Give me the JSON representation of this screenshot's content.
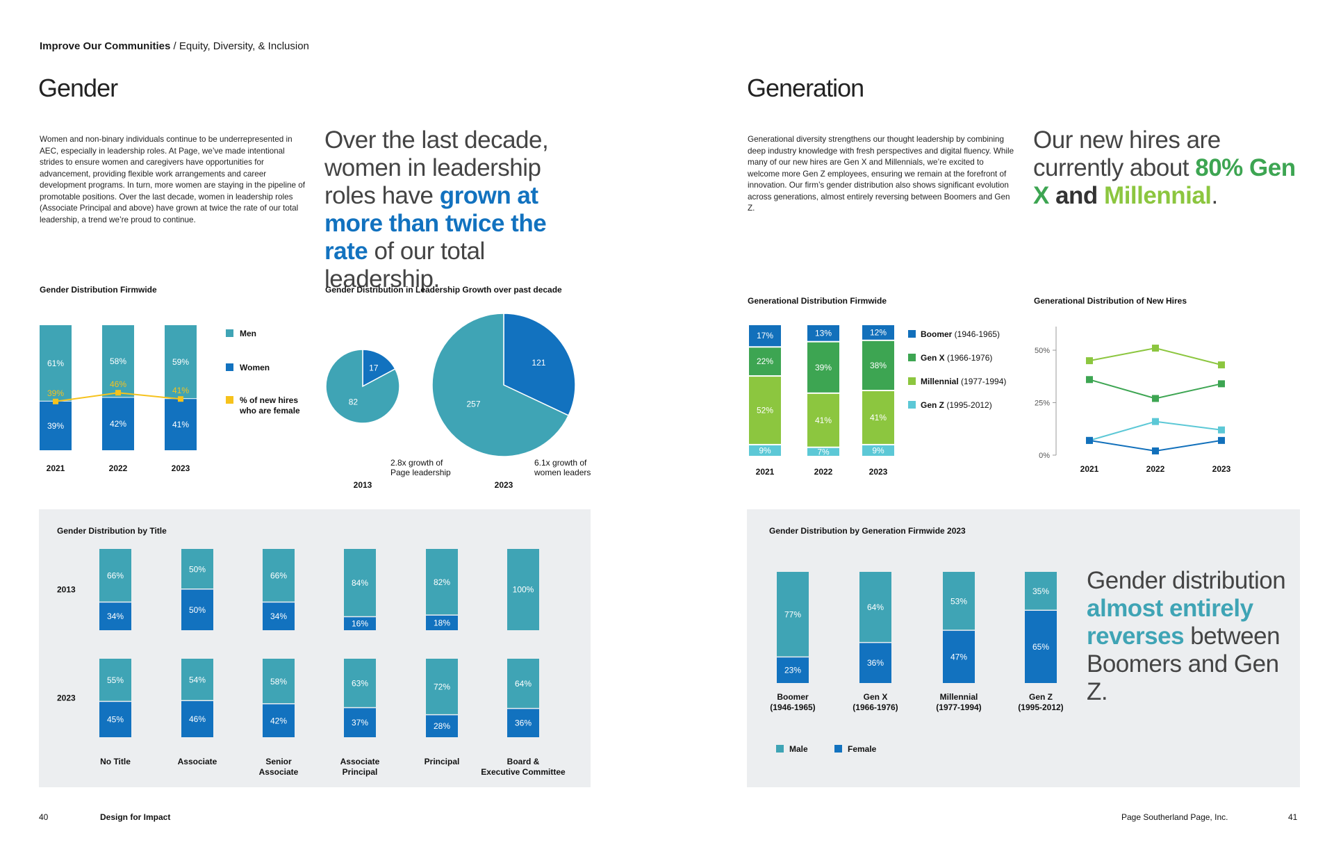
{
  "header": {
    "section": "Improve Our Communities",
    "subsection": " / Equity, Diversity, & Inclusion"
  },
  "colors": {
    "men": "#3fa4b5",
    "women": "#1272bf",
    "yellow": "#f6c21c",
    "boomer": "#1270bb",
    "genx": "#3da552",
    "millennial": "#8cc63f",
    "genz": "#5cc8d6",
    "panel": "#eceef0"
  },
  "gender": {
    "title": "Gender",
    "body": "Women and non-binary individuals continue to be underrepresented in AEC, especially in leadership roles. At Page, we’ve made intentional strides to ensure women and caregivers have opportunities for advancement, providing flexible work arrangements and career development programs. In turn, more women are staying in the pipeline of promotable positions. Over the last decade, women in leadership roles (Associate Principal and above) have grown at twice the rate of our total leadership, a trend we’re proud to continue.",
    "pull_a": "Over the last decade, women in leadership roles have ",
    "pull_b": "grown at more than twice the rate",
    "pull_c": " of our total leadership."
  },
  "generation": {
    "title": "Generation",
    "body": "Generational diversity strengthens our thought leadership by combining deep industry knowledge with fresh perspectives and digital fluency. While many of our new hires are Gen X and Millennials, we’re excited to welcome more Gen Z employees, ensuring we remain at the forefront of innovation. Our firm’s gender distribution also shows significant evolution across generations, almost entirely reversing between Boomers and Gen Z.",
    "pull_a": "Our new hires are currently about ",
    "pull_b": "80% Gen X",
    "pull_c": " and ",
    "pull_d": "Millennial",
    "pull_e": "."
  },
  "chart_data": [
    {
      "id": "gender-firmwide",
      "type": "bar",
      "title": "Gender Distribution Firmwide",
      "categories": [
        "2021",
        "2022",
        "2023"
      ],
      "series": [
        {
          "name": "Men",
          "values": [
            61,
            58,
            59
          ]
        },
        {
          "name": "Women",
          "values": [
            39,
            42,
            41
          ]
        },
        {
          "name": "% of new hires who are female",
          "values": [
            39,
            46,
            41
          ]
        }
      ],
      "labels": {
        "men": [
          "61%",
          "58%",
          "59%"
        ],
        "women": [
          "39%",
          "42%",
          "41%"
        ],
        "hires": [
          "39%",
          "46%",
          "41%"
        ]
      },
      "legend": [
        "Men",
        "Women",
        "% of new hires",
        "who are female"
      ]
    },
    {
      "id": "leadership-growth",
      "type": "pie",
      "title": "Gender Distribution in Leadership Growth over past decade",
      "pies": [
        {
          "year": "2013",
          "men": 82,
          "women": 17,
          "men_label": "82",
          "women_label": "17"
        },
        {
          "year": "2023",
          "men": 257,
          "women": 121,
          "men_label": "257",
          "women_label": "121"
        }
      ],
      "notes": [
        "2.8x growth of",
        "Page leadership",
        "6.1x growth of",
        "women leaders"
      ]
    },
    {
      "id": "gender-by-title",
      "type": "bar",
      "title": "Gender Distribution by Title",
      "rows": [
        "2013",
        "2023"
      ],
      "categories": [
        [
          "No Title"
        ],
        [
          "Associate"
        ],
        [
          "Senior",
          "Associate"
        ],
        [
          "Associate",
          "Principal"
        ],
        [
          "Principal"
        ],
        [
          "Board &",
          "Executive Committee"
        ]
      ],
      "men_2013": [
        66,
        50,
        66,
        84,
        82,
        100
      ],
      "women_2013": [
        34,
        50,
        34,
        16,
        18,
        0
      ],
      "men_2023": [
        55,
        54,
        58,
        63,
        72,
        64
      ],
      "women_2023": [
        45,
        46,
        42,
        37,
        28,
        36
      ],
      "labels_men_2013": [
        "66%",
        "50%",
        "66%",
        "84%",
        "82%",
        "100%"
      ],
      "labels_women_2013": [
        "34%",
        "50%",
        "34%",
        "16%",
        "18%",
        ""
      ],
      "labels_men_2023": [
        "55%",
        "54%",
        "58%",
        "63%",
        "72%",
        "64%"
      ],
      "labels_women_2023": [
        "45%",
        "46%",
        "42%",
        "37%",
        "28%",
        "36%"
      ]
    },
    {
      "id": "gen-firmwide",
      "type": "bar",
      "title": "Generational Distribution Firmwide",
      "categories": [
        "2021",
        "2022",
        "2023"
      ],
      "series": [
        {
          "name": "Boomer (1946-1965)",
          "values": [
            17,
            13,
            12
          ]
        },
        {
          "name": "Gen X (1966-1976)",
          "values": [
            22,
            39,
            38
          ]
        },
        {
          "name": "Millennial (1977-1994)",
          "values": [
            52,
            41,
            41
          ]
        },
        {
          "name": "Gen Z (1995-2012)",
          "values": [
            9,
            7,
            9
          ]
        }
      ],
      "labels": {
        "boomer": [
          "17%",
          "13%",
          "12%"
        ],
        "genx": [
          "22%",
          "39%",
          "38%"
        ],
        "millennial": [
          "52%",
          "41%",
          "41%"
        ],
        "genz": [
          "9%",
          "7%",
          "9%"
        ]
      }
    },
    {
      "id": "gen-new-hires",
      "type": "line",
      "title": "Generational Distribution of New Hires",
      "categories": [
        "2021",
        "2022",
        "2023"
      ],
      "yticks": [
        "0%",
        "25%",
        "50%"
      ],
      "ylim": [
        0,
        60
      ],
      "series": [
        {
          "name": "Millennial",
          "values": [
            45,
            51,
            43
          ]
        },
        {
          "name": "Gen X",
          "values": [
            36,
            27,
            34
          ]
        },
        {
          "name": "Gen Z",
          "values": [
            7,
            16,
            12
          ]
        },
        {
          "name": "Boomer",
          "values": [
            7,
            2,
            7
          ]
        }
      ]
    },
    {
      "id": "gender-by-generation",
      "type": "bar",
      "title": "Gender Distribution by Generation Firmwide 2023",
      "categories": [
        [
          "Boomer",
          "(1946-1965)"
        ],
        [
          "Gen X",
          "(1966-1976)"
        ],
        [
          "Millennial",
          "(1977-1994)"
        ],
        [
          "Gen Z",
          "(1995-2012)"
        ]
      ],
      "male": [
        77,
        64,
        53,
        35
      ],
      "female": [
        23,
        36,
        47,
        65
      ],
      "labels_male": [
        "77%",
        "64%",
        "53%",
        "35%"
      ],
      "labels_female": [
        "23%",
        "36%",
        "47%",
        "65%"
      ],
      "legend": [
        "Male",
        "Female"
      ]
    }
  ],
  "gen_pull": {
    "a": "Gender distribution ",
    "b": "almost entirely reverses",
    "c": " between Boomers and Gen Z."
  },
  "footer": {
    "left_page": "40",
    "left_title": "Design for Impact",
    "right_title": "Page Southerland Page, Inc.",
    "right_page": "41"
  }
}
